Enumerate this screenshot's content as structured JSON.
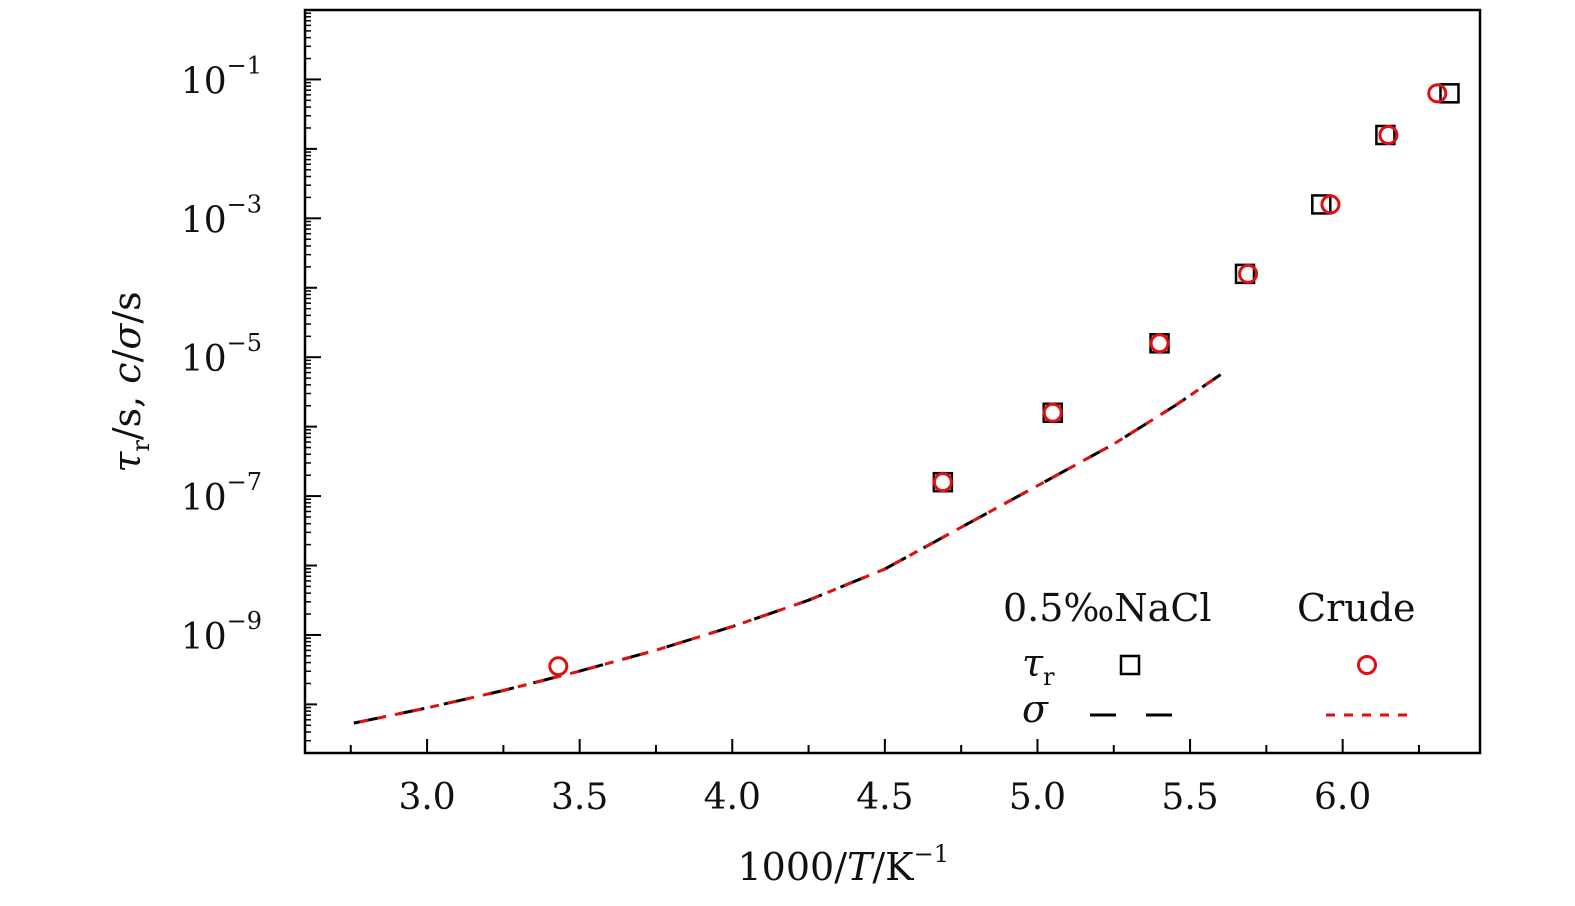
{
  "chart_data": {
    "type": "scatter",
    "title": "",
    "xlabel": "1000/T/K⁻¹",
    "xlabel_parts": {
      "pre": "1000/",
      "ital": "T",
      "post": "/K",
      "sup": "−1"
    },
    "ylabel": "τr/s, c/σ/s",
    "ylabel_parts": {
      "tau": "τ",
      "tau_sub": "r",
      "mid": "/s, ",
      "c": "c",
      "slash": "/",
      "sigma": "σ",
      "post": "/s"
    },
    "xlim": [
      2.6,
      6.45
    ],
    "ylim_log10": [
      -10.7,
      0.0
    ],
    "x_ticks": [
      3.0,
      3.5,
      4.0,
      4.5,
      5.0,
      5.5,
      6.0
    ],
    "x_tick_labels": [
      "3.0",
      "3.5",
      "4.0",
      "4.5",
      "5.0",
      "5.5",
      "6.0"
    ],
    "y_ticks_log10": [
      -1,
      -3,
      -5,
      -7,
      -9
    ],
    "y_tick_labels": [
      {
        "base": "10",
        "exp": "−1"
      },
      {
        "base": "10",
        "exp": "−3"
      },
      {
        "base": "10",
        "exp": "−5"
      },
      {
        "base": "10",
        "exp": "−7"
      },
      {
        "base": "10",
        "exp": "−9"
      }
    ],
    "legend": {
      "placement": "bottom-right",
      "col_nacl": "0.5‰NaCl",
      "col_crude": "Crude",
      "row_tau": "τ",
      "row_tau_sub": "r",
      "row_sigma": "σ"
    },
    "series": [
      {
        "name": "τr 0.5‰NaCl",
        "marker": "square",
        "color": "#000000",
        "x": [
          4.69,
          5.05,
          5.4,
          5.68,
          5.93,
          6.14,
          6.35
        ],
        "log10_y": [
          -6.8,
          -5.8,
          -4.8,
          -3.8,
          -2.8,
          -1.8,
          -1.2
        ]
      },
      {
        "name": "τr Crude",
        "marker": "circle",
        "color": "#e01010",
        "x": [
          3.43,
          4.69,
          5.05,
          5.4,
          5.69,
          5.96,
          6.15,
          6.31
        ],
        "log10_y": [
          -9.45,
          -6.8,
          -5.8,
          -4.8,
          -3.8,
          -2.8,
          -1.8,
          -1.2
        ]
      },
      {
        "name": "σ 0.5‰NaCl",
        "style": "long-dash",
        "color": "#000000",
        "x": [
          2.76,
          3.0,
          3.25,
          3.5,
          3.75,
          4.0,
          4.25,
          4.5,
          4.75,
          5.0,
          5.25,
          5.45,
          5.6
        ],
        "log10_y": [
          -10.27,
          -10.05,
          -9.8,
          -9.52,
          -9.22,
          -8.88,
          -8.5,
          -8.05,
          -7.45,
          -6.85,
          -6.25,
          -5.7,
          -5.25
        ]
      },
      {
        "name": "σ Crude",
        "style": "short-dash",
        "color": "#e01010",
        "x": [
          2.76,
          3.0,
          3.25,
          3.5,
          3.75,
          4.0,
          4.25,
          4.5,
          4.75,
          5.0,
          5.25,
          5.45,
          5.6
        ],
        "log10_y": [
          -10.27,
          -10.05,
          -9.8,
          -9.52,
          -9.22,
          -8.88,
          -8.5,
          -8.05,
          -7.45,
          -6.85,
          -6.25,
          -5.7,
          -5.25
        ]
      }
    ],
    "colors": {
      "axis": "#000000",
      "nacl": "#000000",
      "crude": "#e01010"
    }
  }
}
